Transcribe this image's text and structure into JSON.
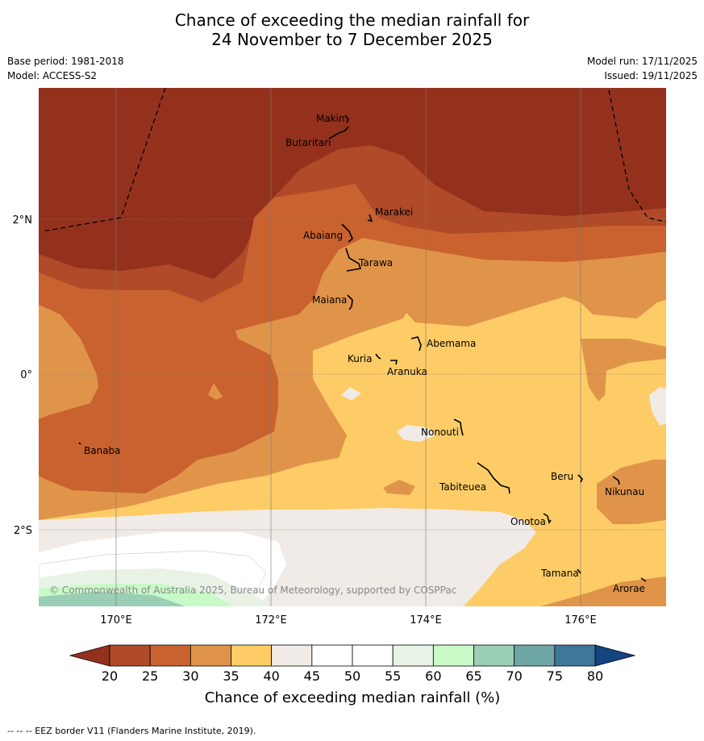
{
  "title": {
    "line1": "Chance of exceeding the median rainfall for",
    "line2": "24 November to 7 December 2025"
  },
  "meta": {
    "base_period": "Base period: 1981-2018",
    "model": "Model: ACCESS-S2",
    "model_run": "Model run: 17/11/2025",
    "issued": "Issued: 19/11/2025"
  },
  "axes": {
    "lat_labels": [
      "2°N",
      "0°",
      "2°S"
    ],
    "lon_labels": [
      "170°E",
      "172°E",
      "174°E",
      "176°E"
    ]
  },
  "places": [
    "Makin",
    "Butaritari",
    "Marakei",
    "Abaiang",
    "Tarawa",
    "Maiana",
    "Abemama",
    "Kuria",
    "Aranuka",
    "Nonouti",
    "Banaba",
    "Beru",
    "Tabiteuea",
    "Nikunau",
    "Onotoa",
    "Tamana",
    "Arorae"
  ],
  "copyright": "© Commonwealth of Australia 2025, Bureau of Meteorology, supported by COSPPac",
  "colorbar": {
    "ticks": [
      "20",
      "25",
      "30",
      "35",
      "40",
      "45",
      "50",
      "55",
      "60",
      "65",
      "70",
      "75",
      "80"
    ],
    "colors": [
      "#b04a28",
      "#c9622f",
      "#e0944a",
      "#fdcc66",
      "#f0ebe6",
      "#ffffff",
      "#ffffff",
      "#e8f3e6",
      "#c8fac8",
      "#9acfb6",
      "#6ea6a6",
      "#3d7799"
    ],
    "under_color": "#94311d",
    "over_color": "#13457f",
    "label": "Chance of exceeding median rainfall (%)"
  },
  "footer": "-- -- -- EEZ border V11 (Flanders Marine Institute, 2019)."
}
